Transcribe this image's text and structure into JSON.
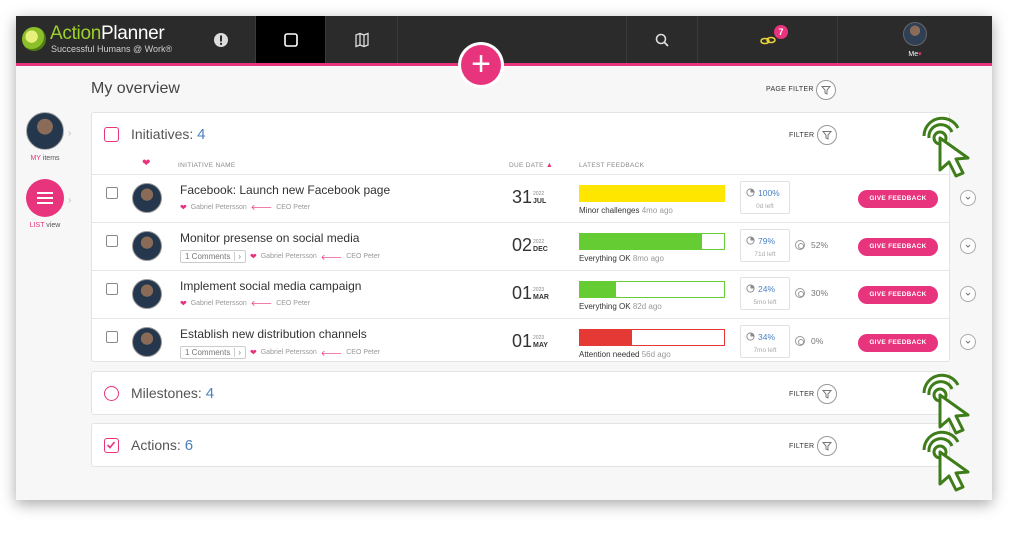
{
  "app": {
    "logo_action": "Action",
    "logo_planner": "Planner",
    "logo_tagline": "Successful Humans @ Work®",
    "notification_count": "7",
    "me_label": "Me"
  },
  "sidebar": {
    "my_items_prefix": "MY",
    "my_items_label": "items",
    "list_view_prefix": "LIST",
    "list_view_label": "view"
  },
  "page": {
    "title": "My overview",
    "page_filter_label": "PAGE FILTER"
  },
  "initiatives": {
    "title": "Initiatives:",
    "count": "4",
    "filter_label": "FILTER",
    "columns": {
      "name": "INITIATIVE NAME",
      "due": "DUE DATE",
      "feedback": "LATEST FEEDBACK"
    },
    "give_feedback_label": "GIVE FEEDBACK",
    "rows": [
      {
        "title": "Facebook: Launch new Facebook page",
        "comments": "",
        "owner": "Gabriel Petersson",
        "role": "CEO Peter",
        "due_day": "31",
        "due_year": "2022",
        "due_month": "JUL",
        "feedback_status": "Minor challenges",
        "feedback_age": "4mo ago",
        "feedback_fill": 1.0,
        "feedback_color": "#ffe600",
        "progress": "100%",
        "time_left": "0d left",
        "secondary": ""
      },
      {
        "title": "Monitor presense on social media",
        "comments": "1 Comments",
        "owner": "Gabriel Petersson",
        "role": "CEO Peter",
        "due_day": "02",
        "due_year": "2022",
        "due_month": "DEC",
        "feedback_status": "Everything OK",
        "feedback_age": "8mo ago",
        "feedback_fill": 0.85,
        "feedback_color": "#66cc33",
        "progress": "79%",
        "time_left": "71d left",
        "secondary": "52%"
      },
      {
        "title": "Implement social media campaign",
        "comments": "",
        "owner": "Gabriel Petersson",
        "role": "CEO Peter",
        "due_day": "01",
        "due_year": "2023",
        "due_month": "MAR",
        "feedback_status": "Everything OK",
        "feedback_age": "82d ago",
        "feedback_fill": 0.25,
        "feedback_color": "#66cc33",
        "progress": "24%",
        "time_left": "5mo left",
        "secondary": "30%"
      },
      {
        "title": "Establish new distribution channels",
        "comments": "1 Comments",
        "owner": "Gabriel Petersson",
        "role": "CEO Peter",
        "due_day": "01",
        "due_year": "2023",
        "due_month": "MAY",
        "feedback_status": "Attention needed",
        "feedback_age": "56d ago",
        "feedback_fill": 0.36,
        "feedback_color": "#e53935",
        "progress": "34%",
        "time_left": "7mo left",
        "secondary": "0%"
      }
    ]
  },
  "milestones": {
    "title": "Milestones:",
    "count": "4",
    "filter_label": "FILTER"
  },
  "actions": {
    "title": "Actions:",
    "count": "6",
    "filter_label": "FILTER"
  },
  "colors": {
    "accent": "#e8337d",
    "topbar": "#2b2b2b",
    "link": "#4a7fc0",
    "annotation": "#3e7d1a"
  }
}
